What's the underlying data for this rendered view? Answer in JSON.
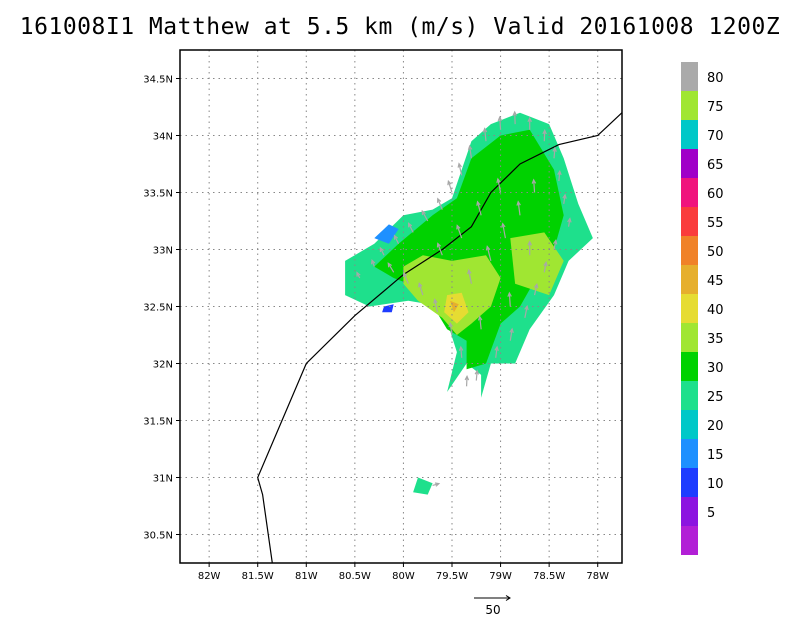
{
  "title": "161008I1 Matthew at 5.5 km (m/s) Valid 20161008 1200Z",
  "chart_data": {
    "type": "heatmap",
    "title": "161008I1 Matthew at 5.5 km (m/s) Valid 20161008 1200Z",
    "xlabel": "",
    "ylabel": "",
    "xlim": [
      -82.3,
      -77.75
    ],
    "ylim": [
      30.25,
      34.75
    ],
    "grid": true,
    "x_ticks": [
      {
        "value": -82.0,
        "label": "82W"
      },
      {
        "value": -81.5,
        "label": "81.5W"
      },
      {
        "value": -81.0,
        "label": "81W"
      },
      {
        "value": -80.5,
        "label": "80.5W"
      },
      {
        "value": -80.0,
        "label": "80W"
      },
      {
        "value": -79.5,
        "label": "79.5W"
      },
      {
        "value": -79.0,
        "label": "79W"
      },
      {
        "value": -78.5,
        "label": "78.5W"
      },
      {
        "value": -78.0,
        "label": "78W"
      }
    ],
    "y_ticks": [
      {
        "value": 30.5,
        "label": "30.5N"
      },
      {
        "value": 31.0,
        "label": "31N"
      },
      {
        "value": 31.5,
        "label": "31.5N"
      },
      {
        "value": 32.0,
        "label": "32N"
      },
      {
        "value": 32.5,
        "label": "32.5N"
      },
      {
        "value": 33.0,
        "label": "33N"
      },
      {
        "value": 33.5,
        "label": "33.5N"
      },
      {
        "value": 34.0,
        "label": "34N"
      },
      {
        "value": 34.5,
        "label": "34.5N"
      }
    ],
    "colorbar": {
      "labels": [
        "5",
        "10",
        "15",
        "20",
        "25",
        "30",
        "35",
        "40",
        "45",
        "50",
        "55",
        "60",
        "65",
        "70",
        "75",
        "80"
      ],
      "colors": [
        "#b21fd6",
        "#8c14e0",
        "#1e3cff",
        "#1e90ff",
        "#00c8c8",
        "#1ee08c",
        "#00d200",
        "#a0e632",
        "#e6dc32",
        "#e6af2d",
        "#f08228",
        "#fa3c3c",
        "#f0147d",
        "#a000c8",
        "#00c8c8",
        "#a0e632",
        "#aaaaaa"
      ]
    },
    "coastline": [
      [
        -81.35,
        30.25
      ],
      [
        -81.45,
        30.85
      ],
      [
        -81.5,
        31.0
      ],
      [
        -81.25,
        31.5
      ],
      [
        -81.0,
        32.0
      ],
      [
        -80.5,
        32.42
      ],
      [
        -80.0,
        32.78
      ],
      [
        -79.6,
        33.0
      ],
      [
        -79.3,
        33.2
      ],
      [
        -79.1,
        33.5
      ],
      [
        -78.8,
        33.75
      ],
      [
        -78.4,
        33.92
      ],
      [
        -78.0,
        34.0
      ],
      [
        -77.75,
        34.2
      ]
    ],
    "wind_regions": [
      {
        "speed": 27,
        "polygon": [
          [
            -80.6,
            32.9
          ],
          [
            -80.3,
            33.05
          ],
          [
            -80.0,
            33.3
          ],
          [
            -79.7,
            33.35
          ],
          [
            -79.5,
            33.45
          ],
          [
            -79.4,
            33.7
          ],
          [
            -79.3,
            33.95
          ],
          [
            -79.1,
            34.1
          ],
          [
            -78.8,
            34.2
          ],
          [
            -78.5,
            34.1
          ],
          [
            -78.35,
            33.8
          ],
          [
            -78.2,
            33.4
          ],
          [
            -78.05,
            33.1
          ],
          [
            -78.3,
            32.9
          ],
          [
            -78.45,
            32.6
          ],
          [
            -78.7,
            32.3
          ],
          [
            -78.85,
            32.0
          ],
          [
            -79.1,
            32.0
          ],
          [
            -79.2,
            31.7
          ],
          [
            -79.2,
            31.9
          ],
          [
            -79.35,
            32.0
          ],
          [
            -79.55,
            31.75
          ],
          [
            -79.45,
            32.1
          ],
          [
            -79.6,
            32.5
          ],
          [
            -79.95,
            32.55
          ],
          [
            -80.35,
            32.5
          ],
          [
            -80.6,
            32.6
          ]
        ]
      },
      {
        "speed": 31,
        "polygon": [
          [
            -80.05,
            33.05
          ],
          [
            -79.7,
            33.3
          ],
          [
            -79.45,
            33.45
          ],
          [
            -79.3,
            33.8
          ],
          [
            -79.0,
            34.0
          ],
          [
            -78.7,
            34.05
          ],
          [
            -78.45,
            33.7
          ],
          [
            -78.35,
            33.3
          ],
          [
            -78.45,
            33.0
          ],
          [
            -78.6,
            32.8
          ],
          [
            -78.8,
            32.5
          ],
          [
            -79.0,
            32.35
          ],
          [
            -79.15,
            32.0
          ],
          [
            -79.35,
            31.95
          ],
          [
            -79.35,
            32.2
          ],
          [
            -79.55,
            32.3
          ],
          [
            -79.8,
            32.65
          ],
          [
            -80.1,
            32.75
          ],
          [
            -80.3,
            32.85
          ]
        ]
      },
      {
        "speed": 37,
        "polygon": [
          [
            -80.0,
            32.85
          ],
          [
            -79.8,
            32.95
          ],
          [
            -79.5,
            32.9
          ],
          [
            -79.15,
            32.95
          ],
          [
            -79.0,
            32.75
          ],
          [
            -79.1,
            32.5
          ],
          [
            -79.3,
            32.35
          ],
          [
            -79.45,
            32.25
          ],
          [
            -79.6,
            32.4
          ],
          [
            -79.85,
            32.55
          ],
          [
            -80.0,
            32.7
          ]
        ]
      },
      {
        "speed": 37,
        "polygon": [
          [
            -78.9,
            33.1
          ],
          [
            -78.55,
            33.15
          ],
          [
            -78.35,
            32.9
          ],
          [
            -78.5,
            32.6
          ],
          [
            -78.85,
            32.7
          ]
        ]
      },
      {
        "speed": 42,
        "polygon": [
          [
            -79.55,
            32.6
          ],
          [
            -79.4,
            32.62
          ],
          [
            -79.33,
            32.45
          ],
          [
            -79.45,
            32.35
          ],
          [
            -79.58,
            32.45
          ]
        ]
      },
      {
        "speed": 47,
        "polygon": [
          [
            -79.52,
            32.55
          ],
          [
            -79.43,
            32.52
          ],
          [
            -79.48,
            32.45
          ]
        ]
      },
      {
        "speed": 17,
        "polygon": [
          [
            -80.3,
            33.1
          ],
          [
            -80.15,
            33.22
          ],
          [
            -80.05,
            33.18
          ],
          [
            -80.15,
            33.05
          ]
        ]
      },
      {
        "speed": 12,
        "polygon": [
          [
            -80.2,
            32.5
          ],
          [
            -80.1,
            32.52
          ],
          [
            -80.12,
            32.45
          ],
          [
            -80.22,
            32.45
          ]
        ]
      },
      {
        "speed": 27,
        "polygon": [
          [
            -79.9,
            30.87
          ],
          [
            -79.75,
            30.85
          ],
          [
            -79.7,
            30.95
          ],
          [
            -79.85,
            31.0
          ]
        ]
      }
    ],
    "wind_vectors": [
      [
        -80.45,
        32.75,
        -6,
        12
      ],
      [
        -80.3,
        32.85,
        -5,
        14
      ],
      [
        -80.2,
        32.95,
        -8,
        16
      ],
      [
        -80.05,
        33.05,
        -9,
        18
      ],
      [
        -79.9,
        33.15,
        -10,
        20
      ],
      [
        -79.75,
        33.25,
        -12,
        22
      ],
      [
        -79.6,
        33.35,
        -10,
        24
      ],
      [
        -79.5,
        33.5,
        -8,
        25
      ],
      [
        -79.4,
        33.65,
        -6,
        26
      ],
      [
        -79.3,
        33.8,
        -4,
        27
      ],
      [
        -79.15,
        33.95,
        -3,
        28
      ],
      [
        -79.0,
        34.05,
        -2,
        28
      ],
      [
        -78.85,
        34.1,
        -1,
        27
      ],
      [
        -78.7,
        34.05,
        0,
        26
      ],
      [
        -78.55,
        33.95,
        1,
        24
      ],
      [
        -78.45,
        33.8,
        2,
        23
      ],
      [
        -78.4,
        33.6,
        2,
        22
      ],
      [
        -78.35,
        33.4,
        3,
        20
      ],
      [
        -78.3,
        33.2,
        3,
        18
      ],
      [
        -78.45,
        33.0,
        4,
        20
      ],
      [
        -78.55,
        32.8,
        4,
        22
      ],
      [
        -78.65,
        32.6,
        5,
        24
      ],
      [
        -78.75,
        32.4,
        5,
        26
      ],
      [
        -78.9,
        32.2,
        4,
        26
      ],
      [
        -79.05,
        32.05,
        3,
        24
      ],
      [
        -79.25,
        31.85,
        2,
        22
      ],
      [
        -79.4,
        32.05,
        -2,
        24
      ],
      [
        -79.5,
        32.25,
        -4,
        26
      ],
      [
        -79.65,
        32.45,
        -6,
        28
      ],
      [
        -79.8,
        32.6,
        -8,
        26
      ],
      [
        -79.95,
        32.7,
        -10,
        24
      ],
      [
        -80.1,
        32.8,
        -12,
        20
      ],
      [
        -79.3,
        32.7,
        -6,
        30
      ],
      [
        -79.1,
        32.9,
        -8,
        32
      ],
      [
        -78.95,
        33.1,
        -6,
        32
      ],
      [
        -78.8,
        33.3,
        -4,
        30
      ],
      [
        -78.65,
        33.5,
        -2,
        28
      ],
      [
        -79.0,
        33.5,
        -6,
        30
      ],
      [
        -79.2,
        33.3,
        -8,
        30
      ],
      [
        -79.4,
        33.1,
        -10,
        28
      ],
      [
        -79.6,
        32.95,
        -10,
        26
      ],
      [
        -78.9,
        32.5,
        -2,
        30
      ],
      [
        -78.7,
        32.95,
        0,
        30
      ],
      [
        -79.2,
        32.3,
        -3,
        28
      ],
      [
        -79.35,
        31.8,
        1,
        22
      ],
      [
        -79.7,
        30.93,
        14,
        4
      ]
    ],
    "reference_vector": {
      "value": 50,
      "label": "50"
    }
  }
}
